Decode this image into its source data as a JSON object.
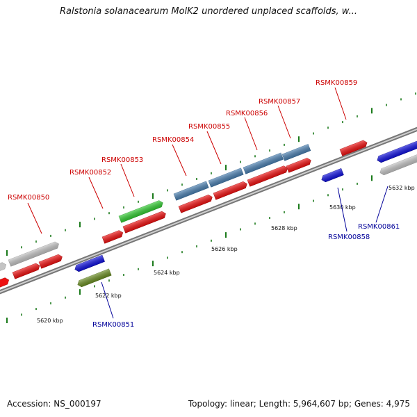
{
  "header": {
    "title": "Ralstonia solanacearum MolK2 unordered unplaced scaffolds, w..."
  },
  "footer": {
    "accession": "Accession: NS_000197",
    "topology": "Topology: linear; Length: 5,964,607 bp; Genes: 4,975"
  },
  "colors": {
    "forward_gene": "#ee1111",
    "reverse_gene": "#1111dd",
    "steel_gene": "#4a7fb0",
    "grey_gene": "#c4c4c4",
    "green_gene": "#33cc33",
    "olive_gene": "#6b8e23",
    "forward_label": "#cc0000",
    "reverse_label": "#000099",
    "backbone": "#888888",
    "tick": "#1a7a1a"
  },
  "scale": {
    "unit": "kbp",
    "ticks": [
      "5620 kbp",
      "5622 kbp",
      "5624 kbp",
      "5626 kbp",
      "5628 kbp",
      "5630 kbp",
      "5632 kbp"
    ]
  },
  "genes": [
    {
      "label": "RSMK00850",
      "strand": "forward"
    },
    {
      "label": "RSMK00851",
      "strand": "reverse"
    },
    {
      "label": "RSMK00852",
      "strand": "forward"
    },
    {
      "label": "RSMK00853",
      "strand": "forward"
    },
    {
      "label": "RSMK00854",
      "strand": "forward"
    },
    {
      "label": "RSMK00855",
      "strand": "forward"
    },
    {
      "label": "RSMK00856",
      "strand": "forward"
    },
    {
      "label": "RSMK00857",
      "strand": "forward"
    },
    {
      "label": "RSMK00858",
      "strand": "reverse"
    },
    {
      "label": "RSMK00859",
      "strand": "forward"
    },
    {
      "label": "RSMK00861",
      "strand": "reverse"
    }
  ]
}
